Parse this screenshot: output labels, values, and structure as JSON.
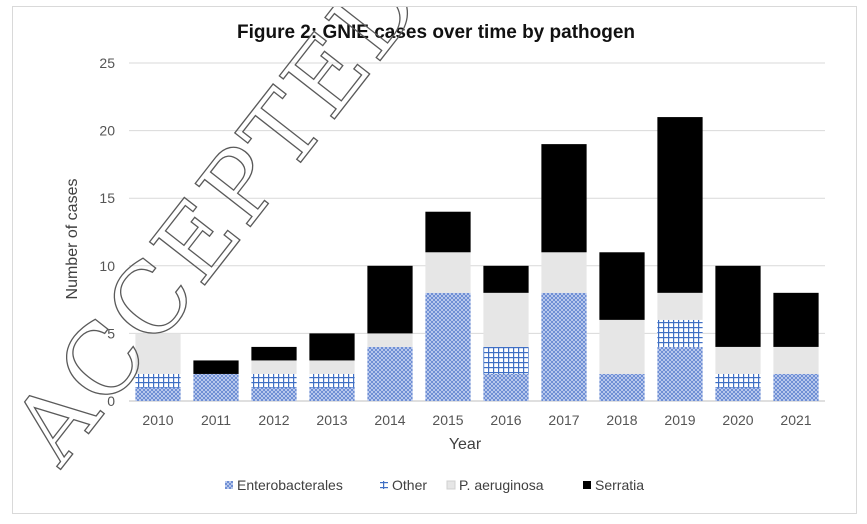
{
  "watermark": "ACCEPTED MANUSCRIPT",
  "chart_data": {
    "type": "bar",
    "stacked": true,
    "title": "Figure 2: GNIE cases over time by pathogen",
    "xlabel": "Year",
    "ylabel": "Number of cases",
    "ylim": [
      0,
      25
    ],
    "yticks": [
      0,
      5,
      10,
      15,
      20,
      25
    ],
    "grid": true,
    "legend_position": "bottom",
    "categories": [
      "2010",
      "2011",
      "2012",
      "2013",
      "2014",
      "2015",
      "2016",
      "2017",
      "2018",
      "2019",
      "2020",
      "2021"
    ],
    "series": [
      {
        "name": "Enterobacterales",
        "pattern": "dots",
        "color": "#8fa9df",
        "values": [
          1,
          2,
          1,
          1,
          4,
          8,
          2,
          8,
          2,
          4,
          1,
          2
        ]
      },
      {
        "name": "Other",
        "pattern": "grid",
        "color": "#4a78c8",
        "values": [
          1,
          0,
          1,
          1,
          0,
          0,
          2,
          0,
          0,
          2,
          1,
          0
        ]
      },
      {
        "name": "P. aeruginosa",
        "pattern": "solid",
        "color": "#e6e6e6",
        "values": [
          3,
          0,
          1,
          1,
          1,
          3,
          4,
          3,
          4,
          2,
          2,
          2
        ]
      },
      {
        "name": "Serratia",
        "pattern": "solid",
        "color": "#000000",
        "values": [
          0,
          1,
          1,
          2,
          5,
          3,
          2,
          8,
          5,
          13,
          6,
          4
        ]
      }
    ]
  }
}
